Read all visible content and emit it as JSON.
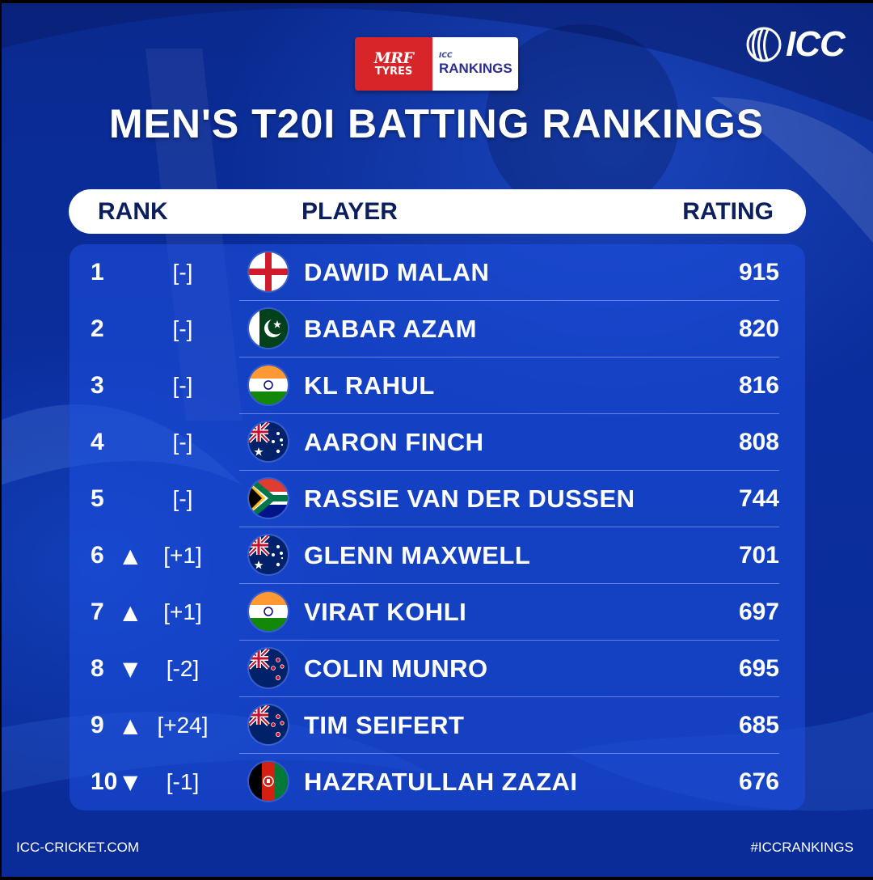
{
  "sponsor": {
    "mrf_word": "MRF",
    "mrf_sub": "TYRES",
    "icc_small": "ICC",
    "rankings_word": "RANKINGS"
  },
  "logo": {
    "text": "ICC",
    "icon": "icc-ball-logo-icon"
  },
  "title": "MEN'S T20I BATTING RANKINGS",
  "header": {
    "rank": "RANK",
    "player": "PLAYER",
    "rating": "RATING"
  },
  "rows": [
    {
      "rank": "1",
      "arrow": "",
      "change": "[-]",
      "flag": "england",
      "player": "DAWID MALAN",
      "rating": "915"
    },
    {
      "rank": "2",
      "arrow": "",
      "change": "[-]",
      "flag": "pakistan",
      "player": "BABAR AZAM",
      "rating": "820"
    },
    {
      "rank": "3",
      "arrow": "",
      "change": "[-]",
      "flag": "india",
      "player": "KL RAHUL",
      "rating": "816"
    },
    {
      "rank": "4",
      "arrow": "",
      "change": "[-]",
      "flag": "australia",
      "player": "AARON FINCH",
      "rating": "808"
    },
    {
      "rank": "5",
      "arrow": "",
      "change": "[-]",
      "flag": "south-africa",
      "player": "RASSIE VAN DER DUSSEN",
      "rating": "744"
    },
    {
      "rank": "6",
      "arrow": "▲",
      "change": "[+1]",
      "flag": "australia",
      "player": "GLENN MAXWELL",
      "rating": "701"
    },
    {
      "rank": "7",
      "arrow": "▲",
      "change": "[+1]",
      "flag": "india",
      "player": "VIRAT KOHLI",
      "rating": "697"
    },
    {
      "rank": "8",
      "arrow": "▼",
      "change": "[-2]",
      "flag": "new-zealand",
      "player": "COLIN MUNRO",
      "rating": "695"
    },
    {
      "rank": "9",
      "arrow": "▲",
      "change": "[+24]",
      "flag": "new-zealand",
      "player": "TIM SEIFERT",
      "rating": "685"
    },
    {
      "rank": "10",
      "arrow": "▼",
      "change": "[-1]",
      "flag": "afghanistan",
      "player": "HAZRATULLAH ZAZAI",
      "rating": "676"
    }
  ],
  "footer": {
    "website": "ICC-CRICKET.COM",
    "hashtag": "#ICCRANKINGS"
  }
}
